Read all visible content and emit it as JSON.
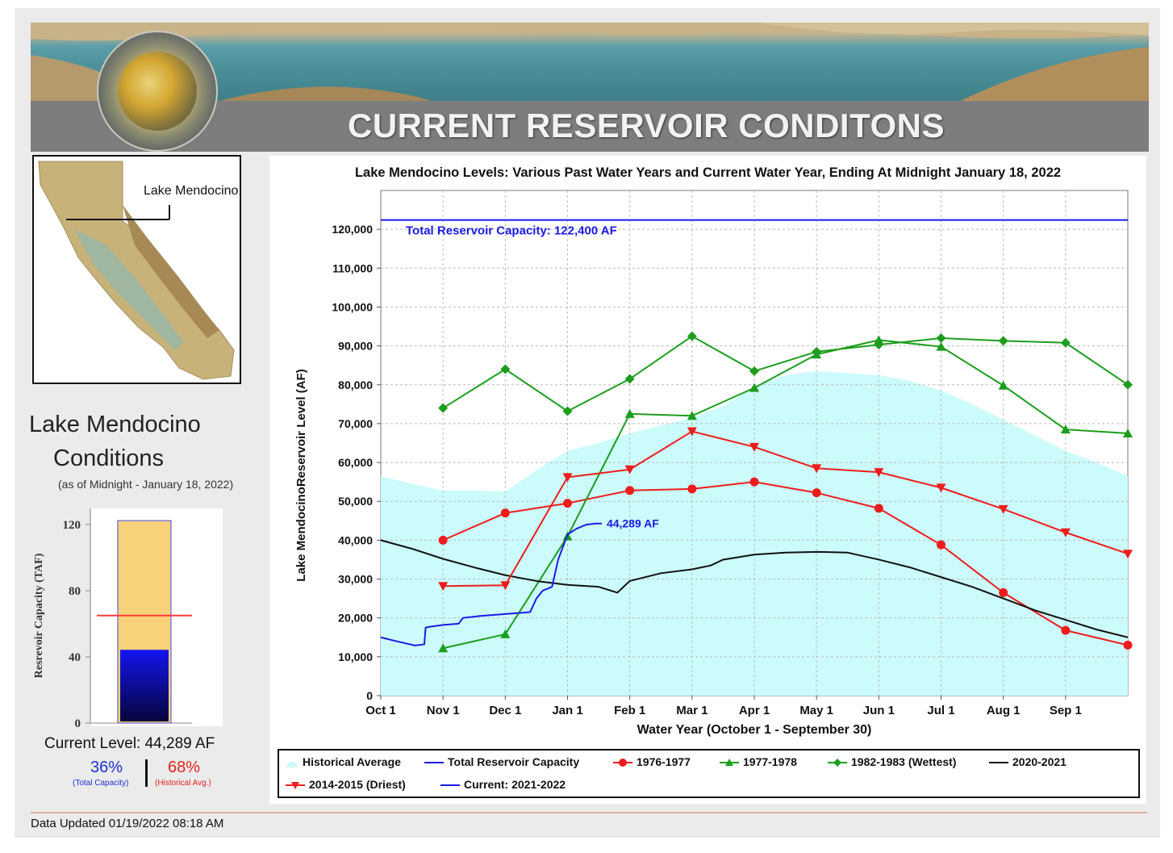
{
  "header": {
    "title": "CURRENT RESERVOIR CONDITONS"
  },
  "map": {
    "label": "Lake Mendocino"
  },
  "conditions": {
    "title_line1": "Lake Mendocino",
    "title_line2": "Conditions",
    "subtitle": "(as of Midnight - January 18, 2022)",
    "current_level": "Current Level: 44,289 AF",
    "pct_total": "36%",
    "pct_total_label": "(Total Capacity)",
    "pct_hist": "68%",
    "pct_hist_label": "(Historical Avg.)"
  },
  "gauge": {
    "ylabel": "Resrevoir Capacity (TAF)",
    "ticks": [
      "0",
      "40",
      "80",
      "120"
    ],
    "capacity_taf": 122.4,
    "current_taf": 44.289,
    "historical_avg_taf": 65,
    "colors": {
      "capacity_fill": "#f8d27a",
      "current_fill": "#1414e0",
      "avg_line": "#ff3b3b"
    }
  },
  "chart_data": {
    "type": "line",
    "title": "Lake Mendocino Levels: Various Past Water Years and Current Water Year, Ending At Midnight January 18, 2022",
    "xlabel": "Water Year (October 1 - September 30)",
    "ylabel": "Lake MendocinoReservoir Level (AF)",
    "ylim": [
      0,
      130000
    ],
    "xlim": [
      0,
      12
    ],
    "yticks": [
      0,
      10000,
      20000,
      30000,
      40000,
      50000,
      60000,
      70000,
      80000,
      90000,
      100000,
      110000,
      120000
    ],
    "ytick_labels": [
      "0",
      "10,000",
      "20,000",
      "30,000",
      "40,000",
      "50,000",
      "60,000",
      "70,000",
      "80,000",
      "90,000",
      "100,000",
      "110,000",
      "120,000"
    ],
    "xticks": [
      0,
      1,
      2,
      3,
      4,
      5,
      6,
      7,
      8,
      9,
      10,
      11
    ],
    "xtick_labels": [
      "Oct 1",
      "Nov 1",
      "Dec 1",
      "Jan 1",
      "Feb 1",
      "Mar 1",
      "Apr 1",
      "May 1",
      "Jun 1",
      "Jul 1",
      "Aug 1",
      "Sep 1"
    ],
    "capacity": {
      "value": 122400,
      "label": "Total Reservoir Capacity: 122,400 AF",
      "color": "#1a1ae6"
    },
    "current_annotation": "44,289 AF",
    "series": [
      {
        "name": "Historical Average",
        "kind": "area",
        "color": "#ccfbfb",
        "x": [
          0,
          0.5,
          1,
          1.5,
          2,
          2.5,
          3,
          3.5,
          4,
          4.5,
          5,
          5.5,
          6,
          6.5,
          7,
          7.5,
          8,
          8.5,
          9,
          9.5,
          10,
          10.5,
          11,
          11.5,
          12
        ],
        "y": [
          56500,
          54500,
          52800,
          52800,
          52500,
          58000,
          63000,
          65000,
          67500,
          69500,
          71500,
          74500,
          79500,
          82500,
          83500,
          83000,
          82500,
          81000,
          78500,
          75000,
          71000,
          67000,
          63000,
          60000,
          56500
        ]
      },
      {
        "name": "Total Reservoir Capacity",
        "kind": "line",
        "color": "#1a1ae6",
        "x": [
          0,
          12
        ],
        "y": [
          122400,
          122400
        ]
      },
      {
        "name": "1976-1977",
        "kind": "line",
        "marker": "circle",
        "color": "#ee1c1c",
        "x": [
          1,
          2,
          3,
          4,
          5,
          6,
          7,
          8,
          9,
          10,
          11,
          12
        ],
        "y": [
          40000,
          47000,
          49500,
          52800,
          53200,
          55000,
          52200,
          48200,
          38800,
          26500,
          16800,
          13000
        ]
      },
      {
        "name": "1977-1978",
        "kind": "line",
        "marker": "triangle-up",
        "color": "#1c9e1c",
        "x": [
          1,
          2,
          3,
          4,
          5,
          6,
          7,
          8,
          9,
          10,
          11,
          12
        ],
        "y": [
          12200,
          15800,
          41000,
          72500,
          72000,
          79200,
          87800,
          91500,
          89800,
          79800,
          68500,
          67500
        ]
      },
      {
        "name": "1982-1983 (Wettest)",
        "kind": "line",
        "marker": "diamond",
        "color": "#1c9e1c",
        "x": [
          1,
          2,
          3,
          4,
          5,
          6,
          7,
          8,
          9,
          10,
          11,
          12
        ],
        "y": [
          74000,
          84000,
          73200,
          81500,
          92500,
          83500,
          88500,
          90300,
          92000,
          91300,
          90800,
          80000
        ]
      },
      {
        "name": "2020-2021",
        "kind": "line",
        "color": "#111111",
        "x": [
          0,
          0.5,
          1,
          1.5,
          2,
          2.5,
          3,
          3.5,
          3.8,
          4,
          4.5,
          5,
          5.3,
          5.5,
          6,
          6.5,
          7,
          7.5,
          8,
          8.5,
          9,
          9.5,
          10,
          10.5,
          11,
          11.5,
          12
        ],
        "y": [
          40000,
          37800,
          35200,
          33000,
          31000,
          29500,
          28500,
          28000,
          26500,
          29500,
          31500,
          32500,
          33500,
          35000,
          36300,
          36800,
          37000,
          36800,
          35000,
          33000,
          30500,
          28000,
          25000,
          22000,
          19500,
          17000,
          15000
        ]
      },
      {
        "name": "2014-2015 (Driest)",
        "kind": "line",
        "marker": "triangle-down",
        "color": "#ee1c1c",
        "x": [
          1,
          2,
          3,
          4,
          5,
          6,
          7,
          8,
          9,
          10,
          11,
          12
        ],
        "y": [
          28200,
          28400,
          56200,
          58200,
          68000,
          64000,
          58500,
          57500,
          53500,
          48000,
          42000,
          36500
        ]
      },
      {
        "name": "Current: 2021-2022",
        "kind": "line",
        "color": "#1a1ae6",
        "x": [
          0,
          0.25,
          0.55,
          0.7,
          0.72,
          0.78,
          1,
          1.25,
          1.32,
          1.6,
          2,
          2.4,
          2.5,
          2.6,
          2.75,
          2.85,
          3.0,
          3.15,
          3.3,
          3.45,
          3.55
        ],
        "y": [
          15000,
          14000,
          12900,
          13200,
          17500,
          17700,
          18200,
          18500,
          20000,
          20500,
          21000,
          21500,
          25000,
          27000,
          28000,
          35000,
          41500,
          43000,
          44000,
          44289,
          44289
        ]
      }
    ]
  }
}
